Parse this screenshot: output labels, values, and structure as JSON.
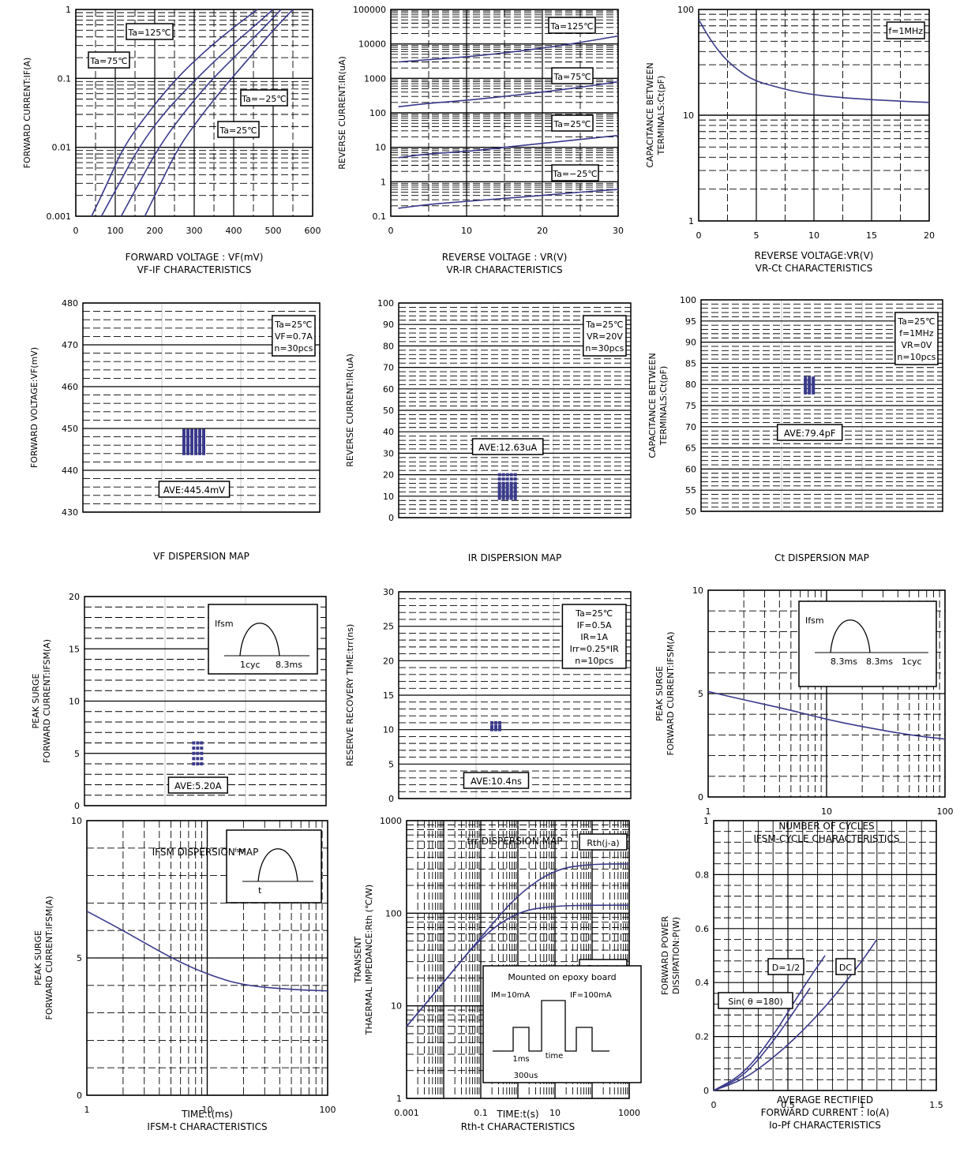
{
  "chart_data": [
    {
      "id": "vf-if",
      "type": "line",
      "x_scale": "linear",
      "y_scale": "log",
      "xlim": [
        0,
        600
      ],
      "ylim": [
        0.001,
        1
      ],
      "xticks": [
        "0",
        "100",
        "200",
        "300",
        "400",
        "500",
        "600"
      ],
      "yticks": [
        "0.001",
        "0.01",
        "0.1",
        "1"
      ],
      "xlabel": "FORWARD VOLTAGE : VF(mV)",
      "ylabel": "FORWARD CURRENT:IF(A)",
      "title": "VF-IF CHARACTERISTICS",
      "series": [
        {
          "name": "Ta=125℃",
          "x": [
            40,
            80,
            120,
            180,
            240,
            300,
            380,
            460
          ],
          "y": [
            0.001,
            0.003,
            0.01,
            0.03,
            0.08,
            0.18,
            0.45,
            1
          ]
        },
        {
          "name": "Ta=75℃",
          "x": [
            65,
            110,
            160,
            220,
            290,
            360,
            440,
            500
          ],
          "y": [
            0.001,
            0.003,
            0.01,
            0.03,
            0.08,
            0.2,
            0.5,
            1
          ]
        },
        {
          "name": "Ta=25℃",
          "x": [
            115,
            160,
            210,
            270,
            340,
            400,
            470,
            520
          ],
          "y": [
            0.001,
            0.003,
            0.01,
            0.03,
            0.09,
            0.2,
            0.5,
            1
          ]
        },
        {
          "name": "Ta=−25℃",
          "x": [
            175,
            215,
            260,
            320,
            380,
            440,
            500,
            550
          ],
          "y": [
            0.001,
            0.003,
            0.01,
            0.03,
            0.08,
            0.2,
            0.5,
            1
          ]
        }
      ],
      "annotations": [
        "Ta=125℃",
        "Ta=75℃",
        "Ta=−25℃",
        "Ta=25℃"
      ]
    },
    {
      "id": "vr-ir",
      "type": "line",
      "x_scale": "linear",
      "y_scale": "log",
      "xlim": [
        0,
        30
      ],
      "ylim": [
        0.1,
        100000
      ],
      "xticks": [
        "0",
        "10",
        "20",
        "30"
      ],
      "yticks": [
        "0.1",
        "1",
        "10",
        "100",
        "1000",
        "10000",
        "100000"
      ],
      "xlabel": "REVERSE VOLTAGE : VR(V)",
      "ylabel": "REVERSE CURRENT:IR(uA)",
      "title": "VR-IR CHARACTERISTICS",
      "series": [
        {
          "name": "Ta=125℃",
          "x": [
            1,
            5,
            10,
            15,
            20,
            25,
            30
          ],
          "y": [
            3000,
            3500,
            4200,
            5500,
            7500,
            11000,
            17000
          ]
        },
        {
          "name": "Ta=75℃",
          "x": [
            1,
            5,
            10,
            15,
            20,
            25,
            30
          ],
          "y": [
            150,
            190,
            230,
            300,
            400,
            550,
            800
          ]
        },
        {
          "name": "Ta=25℃",
          "x": [
            1,
            5,
            10,
            15,
            20,
            25,
            30
          ],
          "y": [
            5,
            6.5,
            7.5,
            10,
            13,
            17,
            22
          ]
        },
        {
          "name": "Ta=−25℃",
          "x": [
            1,
            5,
            10,
            15,
            20,
            25,
            30
          ],
          "y": [
            0.17,
            0.22,
            0.27,
            0.33,
            0.4,
            0.5,
            0.6
          ]
        }
      ],
      "annotations": [
        "Ta=125℃",
        "Ta=75℃",
        "Ta=25℃",
        "Ta=−25℃"
      ]
    },
    {
      "id": "vr-ct",
      "type": "line",
      "x_scale": "linear",
      "y_scale": "log",
      "xlim": [
        0,
        20
      ],
      "ylim": [
        1,
        100
      ],
      "xticks": [
        "0",
        "5",
        "10",
        "15",
        "20"
      ],
      "yticks": [
        "1",
        "10",
        "100"
      ],
      "xlabel": "REVERSE VOLTAGE:VR(V)",
      "ylabel": "CAPACITANCE BETWEEN TERMINALS:Ct(pF)",
      "title": "VR-Ct CHARACTERISTICS",
      "series": [
        {
          "name": "",
          "x": [
            0,
            1,
            2,
            3,
            4,
            5,
            6,
            8,
            10,
            12,
            15,
            18,
            20
          ],
          "y": [
            80,
            52,
            37,
            29,
            24,
            21,
            19.5,
            17,
            15.6,
            14.8,
            14,
            13.5,
            13.2
          ]
        }
      ],
      "annotations": [
        "f=1MHz"
      ]
    },
    {
      "id": "vf-dispersion",
      "type": "scatter",
      "ylim": [
        430,
        480
      ],
      "yticks": [
        "430",
        "440",
        "450",
        "460",
        "470",
        "480"
      ],
      "ylabel": "FORWARD VOLTAGE:VF(mV)",
      "title": "VF DISPERSION MAP",
      "values": [
        449.5,
        449,
        448.5,
        448,
        447.5,
        447,
        446.5,
        446,
        445.5,
        445,
        444.5,
        444
      ],
      "annotations": [
        "Ta=25℃",
        "VF=0.7A",
        "n=30pcs"
      ],
      "average_label": "AVE:445.4mV"
    },
    {
      "id": "ir-dispersion",
      "type": "scatter",
      "ylim": [
        0,
        100
      ],
      "yticks": [
        "0",
        "10",
        "20",
        "30",
        "40",
        "50",
        "60",
        "70",
        "80",
        "90",
        "100"
      ],
      "ylabel": "REVERSE CURRENT:IR(uA)",
      "title": "IR DISPERSION MAP",
      "values": [
        20,
        18,
        16,
        15,
        14,
        13,
        12,
        11,
        10,
        9
      ],
      "annotations": [
        "Ta=25℃",
        "VR=20V",
        "n=30pcs"
      ],
      "average_label": "AVE:12.63uA"
    },
    {
      "id": "ct-dispersion",
      "type": "scatter",
      "ylim": [
        50,
        100
      ],
      "yticks": [
        "50",
        "55",
        "60",
        "65",
        "70",
        "75",
        "80",
        "85",
        "90",
        "95",
        "100"
      ],
      "ylabel": "CAPACITANCE BETWEEN TERMINALS:Ct(pF)",
      "title": "Ct DISPERSION MAP",
      "values": [
        81.5,
        81,
        80.5,
        80,
        79.5,
        79,
        78.5,
        78
      ],
      "annotations": [
        "Ta=25℃",
        "f=1MHz",
        "VR=0V",
        "n=10pcs"
      ],
      "average_label": "AVE:79.4pF"
    },
    {
      "id": "ifsm-dispersion",
      "type": "scatter",
      "ylim": [
        0,
        20
      ],
      "yticks": [
        "0",
        "5",
        "10",
        "15",
        "20"
      ],
      "ylabel": "PEAK SURGE FORWARD CURRENT:IFSM(A)",
      "title": "IFSM DISPERSION MAP",
      "values": [
        6,
        5.5,
        5,
        4.5,
        4
      ],
      "annotations": [
        "Ifsm",
        "1cyc",
        "8.3ms"
      ],
      "average_label": "AVE:5.20A"
    },
    {
      "id": "trr-dispersion",
      "type": "scatter",
      "ylim": [
        0,
        30
      ],
      "yticks": [
        "0",
        "5",
        "10",
        "15",
        "20",
        "25",
        "30"
      ],
      "ylabel": "RESERVE RECOVERY TIME:trr(ns)",
      "title": "trr DISPERSION MAP",
      "values": [
        11,
        10.5,
        10,
        10.3
      ],
      "annotations": [
        "Ta=25℃",
        "IF=0.5A",
        "IR=1A",
        "Irr=0.25*IR",
        "n=10pcs"
      ],
      "average_label": "AVE:10.4ns"
    },
    {
      "id": "ifsm-cycle",
      "type": "line",
      "x_scale": "log",
      "y_scale": "linear",
      "xlim": [
        1,
        100
      ],
      "ylim": [
        0,
        10
      ],
      "xticks": [
        "1",
        "10",
        "100"
      ],
      "yticks": [
        "0",
        "5",
        "10"
      ],
      "xlabel": "NUMBER OF CYCLES",
      "ylabel": "PEAK SURGE FORWARD CURRENT:IFSM(A)",
      "title": "IFSM-CYCLE CHARACTERISTICS",
      "series": [
        {
          "name": "",
          "x": [
            1,
            2,
            5,
            10,
            20,
            50,
            100
          ],
          "y": [
            5.1,
            4.7,
            4.2,
            3.75,
            3.4,
            3.0,
            2.8
          ]
        }
      ],
      "annotations": [
        "Ifsm",
        "8.3ms",
        "8.3ms",
        "1cyc"
      ]
    },
    {
      "id": "ifsm-t",
      "type": "line",
      "x_scale": "log",
      "y_scale": "linear",
      "xlim": [
        1,
        100
      ],
      "ylim": [
        0,
        10
      ],
      "xticks": [
        "1",
        "10",
        "100"
      ],
      "yticks": [
        "0",
        "5",
        "10"
      ],
      "xlabel": "TIME:t(ms)",
      "ylabel": "PEAK SURGE FORWARD CURRENT:IFSM(A)",
      "title": "IFSM-t CHARACTERISTICS",
      "series": [
        {
          "name": "",
          "x": [
            1,
            2,
            5,
            10,
            20,
            50,
            100
          ],
          "y": [
            6.7,
            6.0,
            5.0,
            4.4,
            4.0,
            3.85,
            3.8
          ]
        }
      ],
      "annotations": [
        "Ifsm",
        "t"
      ]
    },
    {
      "id": "rth-t",
      "type": "line",
      "x_scale": "log",
      "y_scale": "log",
      "xlim": [
        0.001,
        1000
      ],
      "ylim": [
        1,
        1000
      ],
      "xticks": [
        "0.001",
        "0.1",
        "10",
        "1000"
      ],
      "yticks": [
        "1",
        "10",
        "100",
        "1000"
      ],
      "xlabel": "TIME:t(s)",
      "ylabel": "TRANSENT THAERMAL IMPEDANCE:Rth (℃/W)",
      "title": "Rth-t CHARACTERISTICS",
      "series": [
        {
          "name": "Rth(j-a)",
          "x": [
            0.001,
            0.01,
            0.1,
            1,
            10,
            100,
            1000
          ],
          "y": [
            6,
            18,
            55,
            160,
            300,
            340,
            340
          ]
        },
        {
          "name": "Rth(j-c)",
          "x": [
            0.001,
            0.01,
            0.1,
            1,
            10,
            100,
            1000
          ],
          "y": [
            6,
            18,
            55,
            105,
            120,
            122,
            122
          ]
        }
      ],
      "annotations": [
        "Mounted on epoxy board",
        "IM=10mA",
        "IF=100mA",
        "1ms",
        "time",
        "300us"
      ]
    },
    {
      "id": "io-pf",
      "type": "line",
      "x_scale": "linear",
      "y_scale": "linear",
      "xlim": [
        0,
        1.5
      ],
      "ylim": [
        0,
        1
      ],
      "xticks": [
        "0",
        "0.5",
        "1",
        "1.5"
      ],
      "yticks": [
        "0",
        "0.2",
        "0.4",
        "0.6",
        "0.8",
        "1"
      ],
      "xlabel": "AVERAGE RECTIFIED FORWARD CURRENT : Io(A)",
      "ylabel": "FORWARD POWER DISSIPATION:P(W)",
      "title": "Io-Pf CHARACTERISTICS",
      "series": [
        {
          "name": "D=1/2",
          "x": [
            0,
            0.2,
            0.4,
            0.6,
            0.75
          ],
          "y": [
            0,
            0.06,
            0.2,
            0.38,
            0.5
          ]
        },
        {
          "name": "Sin(θ=180)",
          "x": [
            0,
            0.2,
            0.4,
            0.55,
            0.65
          ],
          "y": [
            0,
            0.05,
            0.18,
            0.3,
            0.38
          ]
        },
        {
          "name": "DC",
          "x": [
            0,
            0.2,
            0.4,
            0.6,
            0.8,
            1.0,
            1.1
          ],
          "y": [
            0,
            0.04,
            0.12,
            0.22,
            0.34,
            0.48,
            0.56
          ]
        }
      ],
      "annotations": [
        "D=1/2",
        "DC",
        "Sin( θ =180)"
      ]
    }
  ]
}
